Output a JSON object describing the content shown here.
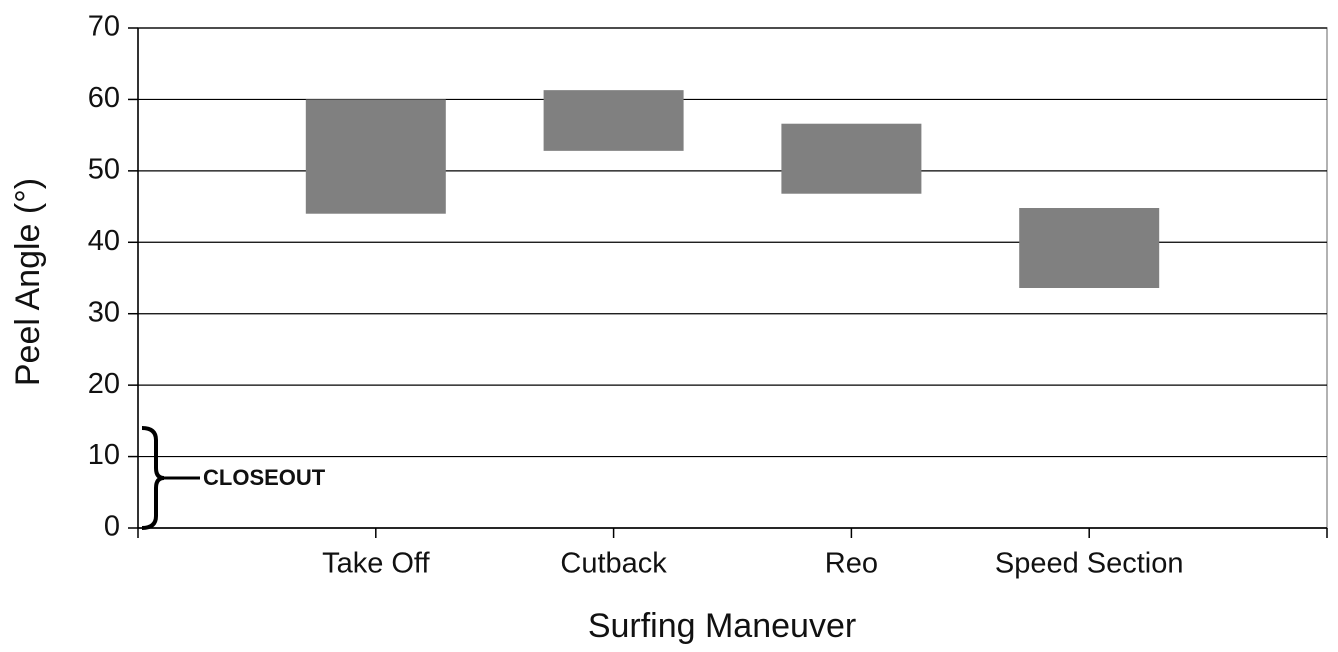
{
  "chart_data": {
    "type": "floating-bar",
    "x_label": "Surfing Maneuver",
    "y_label": "Peel Angle (°)",
    "categories": [
      "Take Off",
      "Cutback",
      "Reo",
      "Speed Section"
    ],
    "low": [
      44,
      52.8,
      46.8,
      33.6
    ],
    "high": [
      60,
      61.3,
      56.6,
      44.8
    ],
    "color": "#808080",
    "ylim": [
      0,
      70
    ],
    "yticks": [
      0,
      10,
      20,
      30,
      40,
      50,
      60,
      70
    ],
    "grid": true,
    "annotation": {
      "text": "CLOSEOUT",
      "range": [
        0,
        14
      ]
    }
  }
}
